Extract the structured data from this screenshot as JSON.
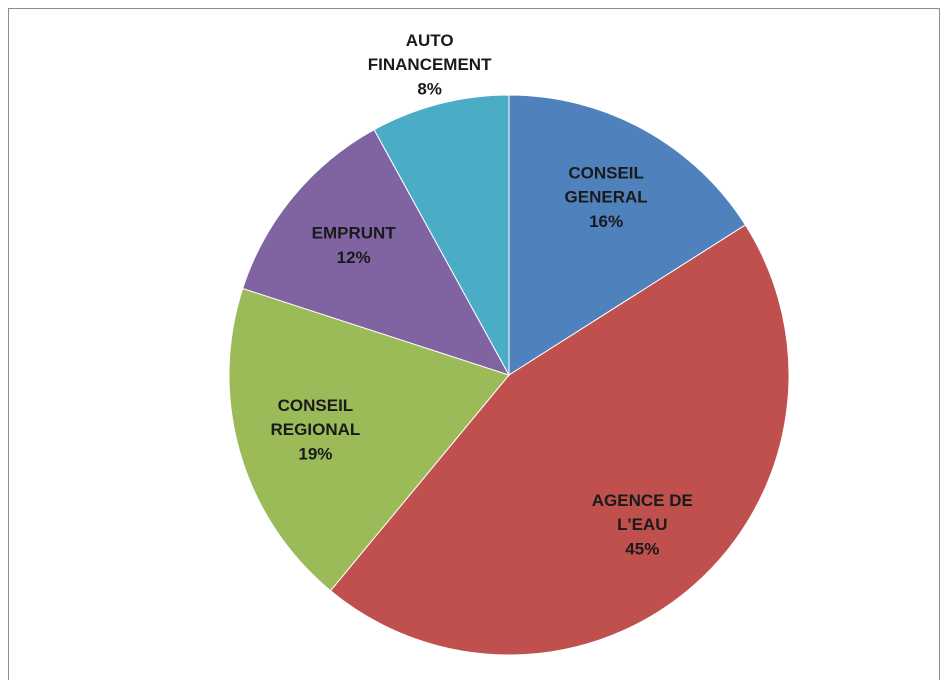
{
  "chart_data": {
    "type": "pie",
    "categories": [
      "CONSEIL GENERAL",
      "AGENCE DE L'EAU",
      "CONSEIL REGIONAL",
      "EMPRUNT",
      "AUTO FINANCEMENT"
    ],
    "values": [
      16,
      45,
      19,
      12,
      8
    ],
    "value_labels": [
      "16%",
      "45%",
      "19%",
      "12%",
      "8%"
    ],
    "colors": [
      "#4f81bd",
      "#c0504d",
      "#9bbb59",
      "#8064a2",
      "#4bacc6"
    ]
  }
}
